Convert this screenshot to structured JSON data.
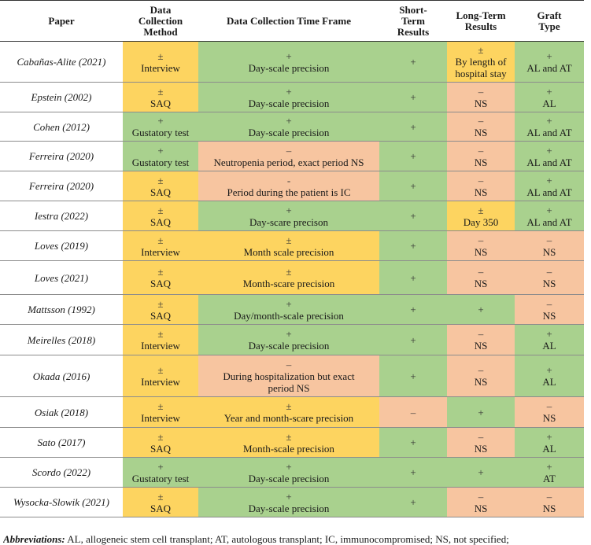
{
  "headers": [
    "Paper",
    "Data Collection Method",
    "Data Collection Time Frame",
    "Short-Term Results",
    "Long-Term Results",
    "Graft Type"
  ],
  "rows": [
    {
      "paper": "Cabañas-Alite (2021)",
      "h": 52,
      "method": {
        "sym": "±",
        "text": "Interview",
        "c": "y"
      },
      "timeframe": {
        "sym": "+",
        "text": "Day-scale precision",
        "c": "g"
      },
      "short": {
        "sym": "+",
        "text": "",
        "c": "g"
      },
      "long": {
        "sym": "±",
        "text": "By length of hospital stay",
        "c": "y"
      },
      "graft": {
        "sym": "+",
        "text": "AL and AT",
        "c": "g"
      }
    },
    {
      "paper": "Epstein (2002)",
      "h": 38,
      "method": {
        "sym": "±",
        "text": "SAQ",
        "c": "y"
      },
      "timeframe": {
        "sym": "+",
        "text": "Day-scale precision",
        "c": "g"
      },
      "short": {
        "sym": "+",
        "text": "",
        "c": "g"
      },
      "long": {
        "sym": "–",
        "text": "NS",
        "c": "r"
      },
      "graft": {
        "sym": "+",
        "text": "AL",
        "c": "g"
      }
    },
    {
      "paper": "Cohen (2012)",
      "h": 37,
      "method": {
        "sym": "+",
        "text": "Gustatory test",
        "c": "g"
      },
      "timeframe": {
        "sym": "+",
        "text": "Day-scale precision",
        "c": "g"
      },
      "short": {
        "sym": "+",
        "text": "",
        "c": "g"
      },
      "long": {
        "sym": "–",
        "text": "NS",
        "c": "r"
      },
      "graft": {
        "sym": "+",
        "text": "AL and AT",
        "c": "g"
      }
    },
    {
      "paper": "Ferreira (2020)",
      "h": 38,
      "method": {
        "sym": "+",
        "text": "Gustatory test",
        "c": "g"
      },
      "timeframe": {
        "sym": "–",
        "text": "Neutropenia period, exact period NS",
        "c": "r"
      },
      "short": {
        "sym": "+",
        "text": "",
        "c": "g"
      },
      "long": {
        "sym": "–",
        "text": "NS",
        "c": "r"
      },
      "graft": {
        "sym": "+",
        "text": "AL and AT",
        "c": "g"
      }
    },
    {
      "paper": "Ferreira (2020)",
      "h": 38,
      "method": {
        "sym": "±",
        "text": "SAQ",
        "c": "y"
      },
      "timeframe": {
        "sym": "-",
        "text": "Period during the patient is IC",
        "c": "r"
      },
      "short": {
        "sym": "+",
        "text": "",
        "c": "g"
      },
      "long": {
        "sym": "–",
        "text": "NS",
        "c": "r"
      },
      "graft": {
        "sym": "+",
        "text": "AL and AT",
        "c": "g"
      }
    },
    {
      "paper": "Iestra (2022)",
      "h": 38,
      "method": {
        "sym": "±",
        "text": "SAQ",
        "c": "y"
      },
      "timeframe": {
        "sym": "+",
        "text": "Day-scare precison",
        "c": "g"
      },
      "short": {
        "sym": "+",
        "text": "",
        "c": "g"
      },
      "long": {
        "sym": "±",
        "text": "Day 350",
        "c": "y"
      },
      "graft": {
        "sym": "+",
        "text": "AL and AT",
        "c": "g"
      }
    },
    {
      "paper": "Loves (2019)",
      "h": 38,
      "method": {
        "sym": "±",
        "text": "Interview",
        "c": "y"
      },
      "timeframe": {
        "sym": "±",
        "text": "Month scale precision",
        "c": "y"
      },
      "short": {
        "sym": "+",
        "text": "",
        "c": "g"
      },
      "long": {
        "sym": "–",
        "text": "NS",
        "c": "r"
      },
      "graft": {
        "sym": "–",
        "text": "NS",
        "c": "r"
      }
    },
    {
      "paper": "Loves (2021)",
      "h": 43,
      "method": {
        "sym": "±",
        "text": "SAQ",
        "c": "y"
      },
      "timeframe": {
        "sym": "±",
        "text": "Month-scare precision",
        "c": "y"
      },
      "short": {
        "sym": "+",
        "text": "",
        "c": "g"
      },
      "long": {
        "sym": "–",
        "text": "NS",
        "c": "r"
      },
      "graft": {
        "sym": "–",
        "text": "NS",
        "c": "r"
      }
    },
    {
      "paper": "Mattsson (1992)",
      "h": 38,
      "method": {
        "sym": "±",
        "text": "SAQ",
        "c": "y"
      },
      "timeframe": {
        "sym": "+",
        "text": "Day/month-scale precision",
        "c": "g"
      },
      "short": {
        "sym": "+",
        "text": "",
        "c": "g"
      },
      "long": {
        "sym": "+",
        "text": "",
        "c": "g"
      },
      "graft": {
        "sym": "–",
        "text": "NS",
        "c": "r"
      }
    },
    {
      "paper": "Meirelles (2018)",
      "h": 39,
      "method": {
        "sym": "±",
        "text": "Interview",
        "c": "y"
      },
      "timeframe": {
        "sym": "+",
        "text": "Day-scale precision",
        "c": "g"
      },
      "short": {
        "sym": "+",
        "text": "",
        "c": "g"
      },
      "long": {
        "sym": "–",
        "text": "NS",
        "c": "r"
      },
      "graft": {
        "sym": "+",
        "text": "AL",
        "c": "g"
      }
    },
    {
      "paper": "Okada (2016)",
      "h": 53,
      "method": {
        "sym": "±",
        "text": "Interview",
        "c": "y"
      },
      "timeframe": {
        "sym": "–",
        "text": "During hospitalization but exact period NS",
        "c": "r"
      },
      "short": {
        "sym": "+",
        "text": "",
        "c": "g"
      },
      "long": {
        "sym": "–",
        "text": "NS",
        "c": "r"
      },
      "graft": {
        "sym": "+",
        "text": "AL",
        "c": "g"
      }
    },
    {
      "paper": "Osiak (2018)",
      "h": 39,
      "method": {
        "sym": "±",
        "text": "Interview",
        "c": "y"
      },
      "timeframe": {
        "sym": "±",
        "text": "Year and month-scare precision",
        "c": "y"
      },
      "short": {
        "sym": "–",
        "text": "",
        "c": "r"
      },
      "long": {
        "sym": "+",
        "text": "",
        "c": "g"
      },
      "graft": {
        "sym": "–",
        "text": "NS",
        "c": "r"
      }
    },
    {
      "paper": "Sato (2017)",
      "h": 38,
      "method": {
        "sym": "±",
        "text": "SAQ",
        "c": "y"
      },
      "timeframe": {
        "sym": "±",
        "text": "Month-scale precision",
        "c": "y"
      },
      "short": {
        "sym": "+",
        "text": "",
        "c": "g"
      },
      "long": {
        "sym": "–",
        "text": "NS",
        "c": "r"
      },
      "graft": {
        "sym": "+",
        "text": "AL",
        "c": "g"
      }
    },
    {
      "paper": "Scordo (2022)",
      "h": 38,
      "method": {
        "sym": "+",
        "text": "Gustatory test",
        "c": "g"
      },
      "timeframe": {
        "sym": "+",
        "text": "Day-scale precision",
        "c": "g"
      },
      "short": {
        "sym": "+",
        "text": "",
        "c": "g"
      },
      "long": {
        "sym": "+",
        "text": "",
        "c": "g"
      },
      "graft": {
        "sym": "+",
        "text": "AT",
        "c": "g"
      }
    },
    {
      "paper": "Wysocka-Slowik (2021)",
      "h": 38,
      "method": {
        "sym": "±",
        "text": "SAQ",
        "c": "y"
      },
      "timeframe": {
        "sym": "+",
        "text": "Day-scale precision",
        "c": "g"
      },
      "short": {
        "sym": "+",
        "text": "",
        "c": "g"
      },
      "long": {
        "sym": "–",
        "text": "NS",
        "c": "r"
      },
      "graft": {
        "sym": "–",
        "text": "NS",
        "c": "r"
      }
    }
  ],
  "footer": {
    "label": "Abbreviations:",
    "text": " AL, allogeneic stem cell transplant; AT, autologous transplant; IC, immunocompromised; NS, not specified;"
  },
  "colors": {
    "yellow": "#fdd460",
    "green": "#a9d18e",
    "red": "#f7c5a0"
  }
}
